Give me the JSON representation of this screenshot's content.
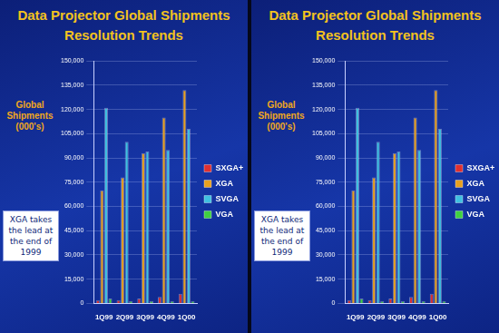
{
  "chart_data": [
    {
      "type": "bar",
      "title": "Data Projector Global Shipments",
      "subtitle": "Resolution Trends",
      "y_label": "Global Shipments (000's)",
      "annotation": "XGA takes the lead at the end of 1999",
      "categories": [
        "1Q99",
        "2Q99",
        "3Q99",
        "4Q99",
        "1Q00"
      ],
      "series": [
        {
          "name": "SXGA+",
          "color": "#e03030",
          "values": [
            2000,
            2000,
            3000,
            4000,
            6000
          ]
        },
        {
          "name": "XGA",
          "color": "#e8a020",
          "values": [
            70000,
            78000,
            93000,
            115000,
            132000
          ]
        },
        {
          "name": "SVGA",
          "color": "#40c0e0",
          "values": [
            121000,
            100000,
            94000,
            95000,
            108000
          ]
        },
        {
          "name": "VGA",
          "color": "#40d040",
          "values": [
            3000,
            1500,
            1500,
            1500,
            1500
          ]
        }
      ],
      "ylim": [
        0,
        150000
      ],
      "yticks": [
        0,
        {
          "value": 15000,
          "label": "15,000"
        },
        {
          "value": 30000,
          "label": "30,000"
        },
        {
          "value": 45000,
          "label": "45,000"
        },
        {
          "value": 60000,
          "label": "60,000"
        },
        {
          "value": 75000,
          "label": "75,000"
        },
        {
          "value": 90000,
          "label": "90,000"
        },
        {
          "value": 105000,
          "label": "105,000"
        },
        {
          "value": 120000,
          "label": "120,000"
        },
        {
          "value": 135000,
          "label": "135,000"
        },
        {
          "value": 150000,
          "label": "150,000"
        }
      ],
      "grid": true,
      "legend": "right"
    },
    {
      "type": "bar",
      "title": "Data Projector Global Shipments",
      "subtitle": "Resolution Trends",
      "y_label": "Global Shipments (000's)",
      "annotation": "XGA takes the lead at the end of 1999",
      "categories": [
        "1Q99",
        "2Q99",
        "3Q99",
        "4Q99",
        "1Q00"
      ],
      "series": [
        {
          "name": "SXGA+",
          "color": "#e03030",
          "values": [
            2000,
            2000,
            3000,
            4000,
            6000
          ]
        },
        {
          "name": "XGA",
          "color": "#e8a020",
          "values": [
            70000,
            78000,
            93000,
            115000,
            132000
          ]
        },
        {
          "name": "SVGA",
          "color": "#40c0e0",
          "values": [
            121000,
            100000,
            94000,
            95000,
            108000
          ]
        },
        {
          "name": "VGA",
          "color": "#40d040",
          "values": [
            3000,
            1500,
            1500,
            1500,
            1500
          ]
        }
      ],
      "ylim": [
        0,
        150000
      ],
      "yticks": [
        0,
        {
          "value": 15000,
          "label": "15,000"
        },
        {
          "value": 30000,
          "label": "30,000"
        },
        {
          "value": 45000,
          "label": "45,000"
        },
        {
          "value": 60000,
          "label": "60,000"
        },
        {
          "value": 75000,
          "label": "75,000"
        },
        {
          "value": 90000,
          "label": "90,000"
        },
        {
          "value": 105000,
          "label": "105,000"
        },
        {
          "value": 120000,
          "label": "120,000"
        },
        {
          "value": 135000,
          "label": "135,000"
        },
        {
          "value": 150000,
          "label": "150,000"
        }
      ],
      "grid": true,
      "legend": "right"
    }
  ]
}
